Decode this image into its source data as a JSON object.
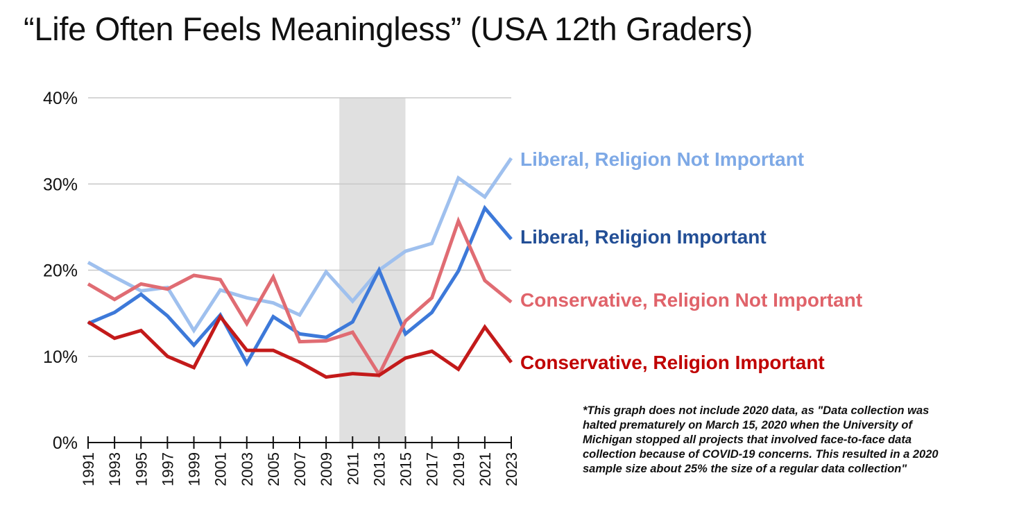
{
  "chart_data": {
    "type": "line",
    "title": "“Life Often Feels Meaningless” (USA 12th Graders)",
    "xlabel": "",
    "ylabel": "",
    "ylim": [
      0,
      40
    ],
    "yticks": [
      0,
      10,
      20,
      30,
      40
    ],
    "ytick_labels": [
      "0%",
      "10%",
      "20%",
      "30%",
      "40%"
    ],
    "grid": true,
    "x": [
      1991,
      1993,
      1995,
      1997,
      1999,
      2001,
      2003,
      2005,
      2007,
      2009,
      2011,
      2013,
      2015,
      2017,
      2019,
      2021,
      2023
    ],
    "x_tick_labels": [
      "1991",
      "1993",
      "1995",
      "1997",
      "1999",
      "2001",
      "2003",
      "2005",
      "2007",
      "2009",
      "2011",
      "2013",
      "2015",
      "2017",
      "2019",
      "2021",
      "2023"
    ],
    "shaded_region": {
      "x_start": 2010,
      "x_end": 2015,
      "color": "#cccccc"
    },
    "series": [
      {
        "name": "Liberal, Religion Not Important",
        "color": "#9fc0ee",
        "values": [
          20.9,
          19.2,
          17.6,
          18.0,
          13.0,
          17.7,
          16.8,
          16.2,
          14.8,
          19.8,
          16.4,
          20.0,
          22.2,
          23.1,
          30.7,
          28.5,
          33.0
        ]
      },
      {
        "name": "Liberal, Religion Important",
        "color": "#3d79d9",
        "values": [
          13.8,
          15.1,
          17.2,
          14.7,
          11.3,
          14.8,
          9.2,
          14.6,
          12.6,
          12.2,
          14.0,
          20.0,
          12.6,
          15.1,
          19.9,
          27.2,
          23.6
        ]
      },
      {
        "name": "Conservative, Religion Not Important",
        "color": "#e06c73",
        "values": [
          18.4,
          16.6,
          18.4,
          17.8,
          19.4,
          18.9,
          13.8,
          19.2,
          11.7,
          11.8,
          12.8,
          7.9,
          14.1,
          16.8,
          25.7,
          18.8,
          16.3
        ]
      },
      {
        "name": "Conservative, Religion Important",
        "color": "#c31a1a",
        "values": [
          14.0,
          12.1,
          13.0,
          10.0,
          8.7,
          14.6,
          10.7,
          10.7,
          9.3,
          7.6,
          8.0,
          7.8,
          9.8,
          10.6,
          8.5,
          13.4,
          9.3
        ]
      }
    ],
    "series_labels": [
      {
        "text": "Liberal, Religion Not Important",
        "color": "#7ea9e6"
      },
      {
        "text": "Liberal, Religion Important",
        "color": "#234f96"
      },
      {
        "text": "Conservative, Religion Not Important",
        "color": "#e0636a"
      },
      {
        "text": "Conservative, Religion Important",
        "color": "#c00000"
      }
    ]
  },
  "footnote": {
    "line1": "*This graph does not include 2020 data, as \"Data collection was",
    "line2": "halted prematurely on March 15, 2020 when the University of",
    "line3": "Michigan stopped all projects that involved face-to-face data",
    "line4": "collection because of COVID-19 concerns. This resulted in a 2020",
    "line5": "sample size about 25% the size of a regular data collection\""
  }
}
